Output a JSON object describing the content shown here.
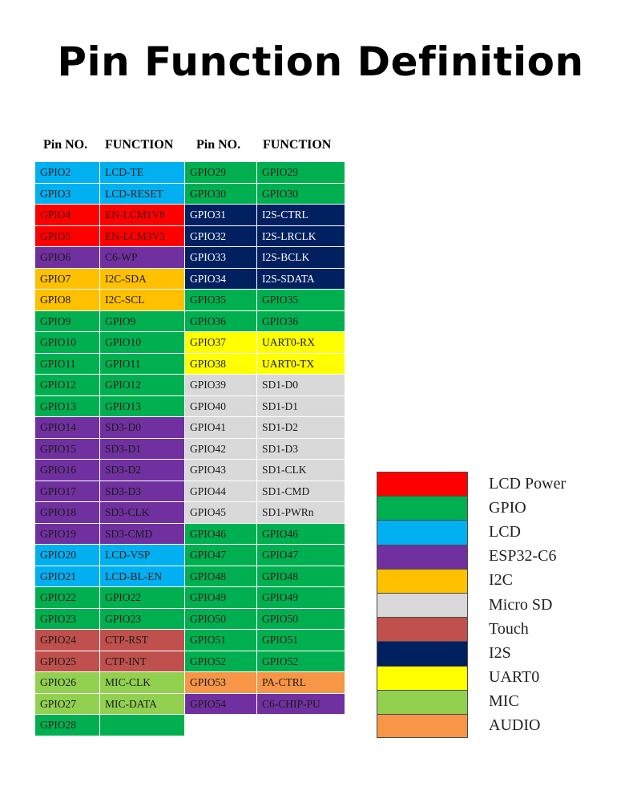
{
  "title": "Pin Function Definition",
  "headers": {
    "pin1": "Pin NO.",
    "fn1": "FUNCTION",
    "pin2": "Pin NO.",
    "fn2": "FUNCTION"
  },
  "colors": {
    "lcd_power": "#ff0000",
    "gpio": "#00b050",
    "lcd": "#00b0f0",
    "esp32c6": "#7030a0",
    "i2c": "#ffc000",
    "microsd": "#d9d9d9",
    "touch": "#c0504d",
    "i2s": "#002060",
    "uart0": "#ffff00",
    "mic": "#92d050",
    "audio": "#f79646"
  },
  "left_rows": [
    {
      "pin": "GPIO2",
      "fn": "LCD-TE",
      "cat": "lcd"
    },
    {
      "pin": "GPIO3",
      "fn": "LCD-RESET",
      "cat": "lcd"
    },
    {
      "pin": "GPIO4",
      "fn": "EN-LCM1V8",
      "cat": "lcd_power"
    },
    {
      "pin": "GPIO5",
      "fn": "EN-LCM3V3",
      "cat": "lcd_power"
    },
    {
      "pin": "GPIO6",
      "fn": "C6-WP",
      "cat": "esp32c6"
    },
    {
      "pin": "GPIO7",
      "fn": "I2C-SDA",
      "cat": "i2c"
    },
    {
      "pin": "GPIO8",
      "fn": "I2C-SCL",
      "cat": "i2c"
    },
    {
      "pin": "GPIO9",
      "fn": "GPIO9",
      "cat": "gpio"
    },
    {
      "pin": "GPIO10",
      "fn": "GPIO10",
      "cat": "gpio"
    },
    {
      "pin": "GPIO11",
      "fn": "GPIO11",
      "cat": "gpio"
    },
    {
      "pin": "GPIO12",
      "fn": "GPIO12",
      "cat": "gpio"
    },
    {
      "pin": "GPIO13",
      "fn": "GPIO13",
      "cat": "gpio"
    },
    {
      "pin": "GPIO14",
      "fn": "SD3-D0",
      "cat": "esp32c6"
    },
    {
      "pin": "GPIO15",
      "fn": "SD3-D1",
      "cat": "esp32c6"
    },
    {
      "pin": "GPIO16",
      "fn": "SD3-D2",
      "cat": "esp32c6"
    },
    {
      "pin": "GPIO17",
      "fn": "SD3-D3",
      "cat": "esp32c6"
    },
    {
      "pin": "GPIO18",
      "fn": "SD3-CLK",
      "cat": "esp32c6"
    },
    {
      "pin": "GPIO19",
      "fn": "SD3-CMD",
      "cat": "esp32c6"
    },
    {
      "pin": "GPIO20",
      "fn": "LCD-VSP",
      "cat": "lcd"
    },
    {
      "pin": "GPIO21",
      "fn": "LCD-BL-EN",
      "cat": "lcd"
    },
    {
      "pin": "GPIO22",
      "fn": "GPIO22",
      "cat": "gpio"
    },
    {
      "pin": "GPIO23",
      "fn": "GPIO23",
      "cat": "gpio"
    },
    {
      "pin": "GPIO24",
      "fn": "CTP-RST",
      "cat": "touch"
    },
    {
      "pin": "GPIO25",
      "fn": "CTP-INT",
      "cat": "touch"
    },
    {
      "pin": "GPIO26",
      "fn": "MIC-CLK",
      "cat": "mic"
    },
    {
      "pin": "GPIO27",
      "fn": "MIC-DATA",
      "cat": "mic"
    },
    {
      "pin": "GPIO28",
      "fn": "",
      "cat": "gpio"
    }
  ],
  "right_rows": [
    {
      "pin": "GPIO29",
      "fn": "GPIO29",
      "cat": "gpio"
    },
    {
      "pin": "GPIO30",
      "fn": "GPIO30",
      "cat": "gpio"
    },
    {
      "pin": "GPIO31",
      "fn": "I2S-CTRL",
      "cat": "i2s"
    },
    {
      "pin": "GPIO32",
      "fn": "I2S-LRCLK",
      "cat": "i2s"
    },
    {
      "pin": "GPIO33",
      "fn": "I2S-BCLK",
      "cat": "i2s"
    },
    {
      "pin": "GPIO34",
      "fn": "I2S-SDATA",
      "cat": "i2s"
    },
    {
      "pin": "GPIO35",
      "fn": "GPIO35",
      "cat": "gpio"
    },
    {
      "pin": "GPIO36",
      "fn": "GPIO36",
      "cat": "gpio"
    },
    {
      "pin": "GPIO37",
      "fn": "UART0-RX",
      "cat": "uart0"
    },
    {
      "pin": "GPIO38",
      "fn": "UART0-TX",
      "cat": "uart0"
    },
    {
      "pin": "GPIO39",
      "fn": "SD1-D0",
      "cat": "microsd"
    },
    {
      "pin": "GPIO40",
      "fn": "SD1-D1",
      "cat": "microsd"
    },
    {
      "pin": "GPIO41",
      "fn": "SD1-D2",
      "cat": "microsd"
    },
    {
      "pin": "GPIO42",
      "fn": "SD1-D3",
      "cat": "microsd"
    },
    {
      "pin": "GPIO43",
      "fn": "SD1-CLK",
      "cat": "microsd"
    },
    {
      "pin": "GPIO44",
      "fn": "SD1-CMD",
      "cat": "microsd"
    },
    {
      "pin": "GPIO45",
      "fn": "SD1-PWRn",
      "cat": "microsd"
    },
    {
      "pin": "GPIO46",
      "fn": "GPIO46",
      "cat": "gpio"
    },
    {
      "pin": "GPIO47",
      "fn": "GPIO47",
      "cat": "gpio"
    },
    {
      "pin": "GPIO48",
      "fn": "GPIO48",
      "cat": "gpio"
    },
    {
      "pin": "GPIO49",
      "fn": "GPIO49",
      "cat": "gpio"
    },
    {
      "pin": "GPIO50",
      "fn": "GPIO50",
      "cat": "gpio"
    },
    {
      "pin": "GPIO51",
      "fn": "GPIO51",
      "cat": "gpio"
    },
    {
      "pin": "GPIO52",
      "fn": "GPIO52",
      "cat": "gpio"
    },
    {
      "pin": "GPIO53",
      "fn": "PA-CTRL",
      "cat": "audio"
    },
    {
      "pin": "GPIO54",
      "fn": "C6-CHIP-PU",
      "cat": "esp32c6"
    }
  ],
  "legend": [
    {
      "label": "LCD Power",
      "cat": "lcd_power"
    },
    {
      "label": "GPIO",
      "cat": "gpio"
    },
    {
      "label": "LCD",
      "cat": "lcd"
    },
    {
      "label": "ESP32-C6",
      "cat": "esp32c6"
    },
    {
      "label": "I2C",
      "cat": "i2c"
    },
    {
      "label": "Micro SD",
      "cat": "microsd"
    },
    {
      "label": "Touch",
      "cat": "touch"
    },
    {
      "label": "I2S",
      "cat": "i2s"
    },
    {
      "label": "UART0",
      "cat": "uart0"
    },
    {
      "label": "MIC",
      "cat": "mic"
    },
    {
      "label": "AUDIO",
      "cat": "audio"
    }
  ]
}
